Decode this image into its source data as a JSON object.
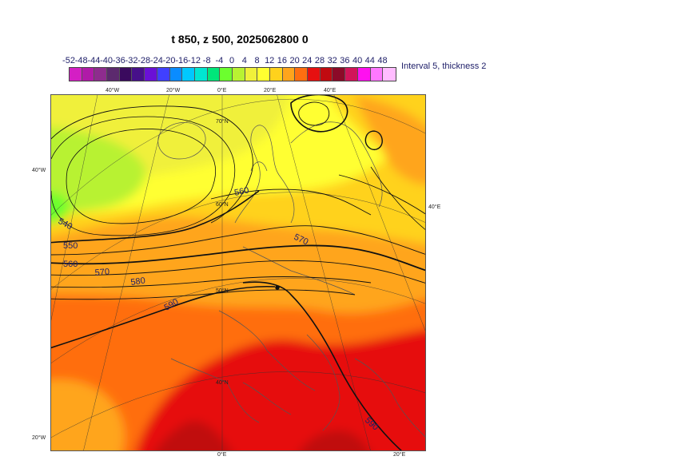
{
  "title": "t 850, z 500, 2025062800 0",
  "legend": {
    "tick_labels": [
      "-52",
      "-48",
      "-44",
      "-40",
      "-36",
      "-32",
      "-28",
      "-24",
      "-20",
      "-16",
      "-12",
      "-8",
      "-4",
      "0",
      "4",
      "8",
      "12",
      "16",
      "20",
      "24",
      "28",
      "32",
      "36",
      "40",
      "44",
      "48"
    ],
    "colors": [
      "#d41fc4",
      "#b01aa8",
      "#8e2c8e",
      "#5c2a6e",
      "#3a0a5e",
      "#47108a",
      "#6a10d6",
      "#4040ff",
      "#0a8cff",
      "#00c8ff",
      "#00e6d2",
      "#00e67a",
      "#6cff2e",
      "#b8f232",
      "#f0f03a",
      "#ffff30",
      "#ffd21c",
      "#ffa51c",
      "#ff6e10",
      "#e61010",
      "#c00a10",
      "#8c0a28",
      "#d2145a",
      "#ff10f0",
      "#ff78ff",
      "#ffbcff"
    ],
    "note": "Interval 5, thickness 2"
  },
  "map": {
    "lon_labels_top": [
      "40°W",
      "20°W",
      "0°E",
      "20°E",
      "40°E"
    ],
    "lon_labels_bottom": [
      "0°E",
      "20°E"
    ],
    "lat_labels_inner": [
      "70°N",
      "60°N",
      "50°N",
      "40°N"
    ],
    "lon_labels_side": [
      "40°W",
      "20°W",
      "40°E"
    ],
    "contour_labels": [
      "540",
      "550",
      "560",
      "570",
      "580",
      "590",
      "560",
      "570",
      "590"
    ],
    "fields": {
      "shading": "t 850 (°C)",
      "contours": "z 500 (dam)"
    }
  }
}
